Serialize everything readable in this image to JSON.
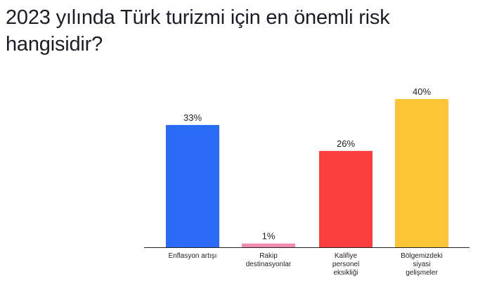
{
  "title": "2023 yılında Türk turizmi için en önemli risk hangisidir?",
  "chart_data": {
    "type": "bar",
    "title": "2023 yılında Türk turizmi için en önemli risk hangisidir?",
    "categories": [
      [
        "Enflasyon artışı"
      ],
      [
        "Rakip",
        "destinasyonlar"
      ],
      [
        "Kalifiye",
        "personel",
        "eksikliği"
      ],
      [
        "Bölgemizdeki",
        "siyasi",
        "gelişmeler"
      ]
    ],
    "values": [
      33,
      1,
      26,
      40
    ],
    "value_labels": [
      "33%",
      "1%",
      "26%",
      "40%"
    ],
    "colors": [
      "#2a6cf6",
      "#f08ab0",
      "#fb3f3f",
      "#fdc537"
    ],
    "ylim": [
      0,
      40
    ],
    "grid": false,
    "legend": "none",
    "xlabel": "",
    "ylabel": ""
  }
}
